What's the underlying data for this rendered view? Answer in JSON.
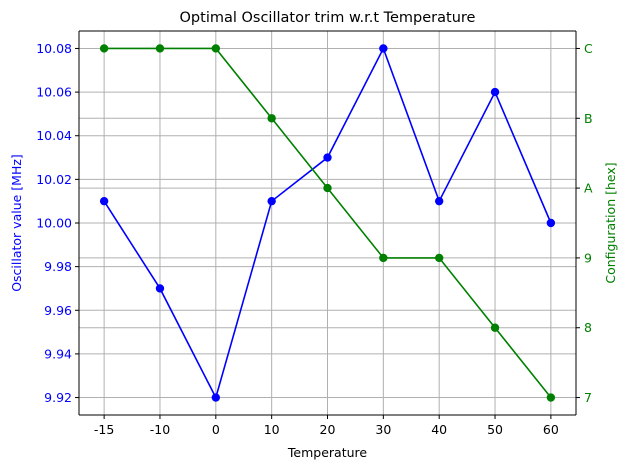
{
  "chart_data": {
    "type": "line",
    "title": "Optimal Oscillator trim w.r.t  Temperature",
    "xlabel": "Temperature",
    "ylabel_left": "Oscillator value [MHz]",
    "ylabel_right": "Configuration [hex]",
    "categories": [
      "-15",
      "-10",
      "0",
      "10",
      "20",
      "30",
      "40",
      "50",
      "60"
    ],
    "grid": true,
    "series": [
      {
        "axis": "left",
        "color": "#0000ff",
        "marker": "circle",
        "values": [
          10.01,
          9.97,
          9.92,
          10.01,
          10.03,
          10.08,
          10.01,
          10.06,
          10.0
        ]
      },
      {
        "axis": "right",
        "color": "#008000",
        "marker": "circle",
        "values": [
          12,
          12,
          12,
          11,
          10,
          9,
          9,
          8,
          7
        ]
      }
    ],
    "y_left": {
      "range": [
        9.912,
        10.088
      ],
      "ticks": [
        9.92,
        9.94,
        9.96,
        9.98,
        10.0,
        10.02,
        10.04,
        10.06,
        10.08
      ],
      "tick_labels": [
        "9.92",
        "9.94",
        "9.96",
        "9.98",
        "10.00",
        "10.02",
        "10.04",
        "10.06",
        "10.08"
      ],
      "color": "#0000ff"
    },
    "y_right": {
      "range": [
        6.75,
        12.25
      ],
      "ticks": [
        7,
        8,
        9,
        10,
        11,
        12
      ],
      "tick_labels": [
        "7",
        "8",
        "9",
        "A",
        "B",
        "C"
      ],
      "color": "#008000"
    }
  }
}
